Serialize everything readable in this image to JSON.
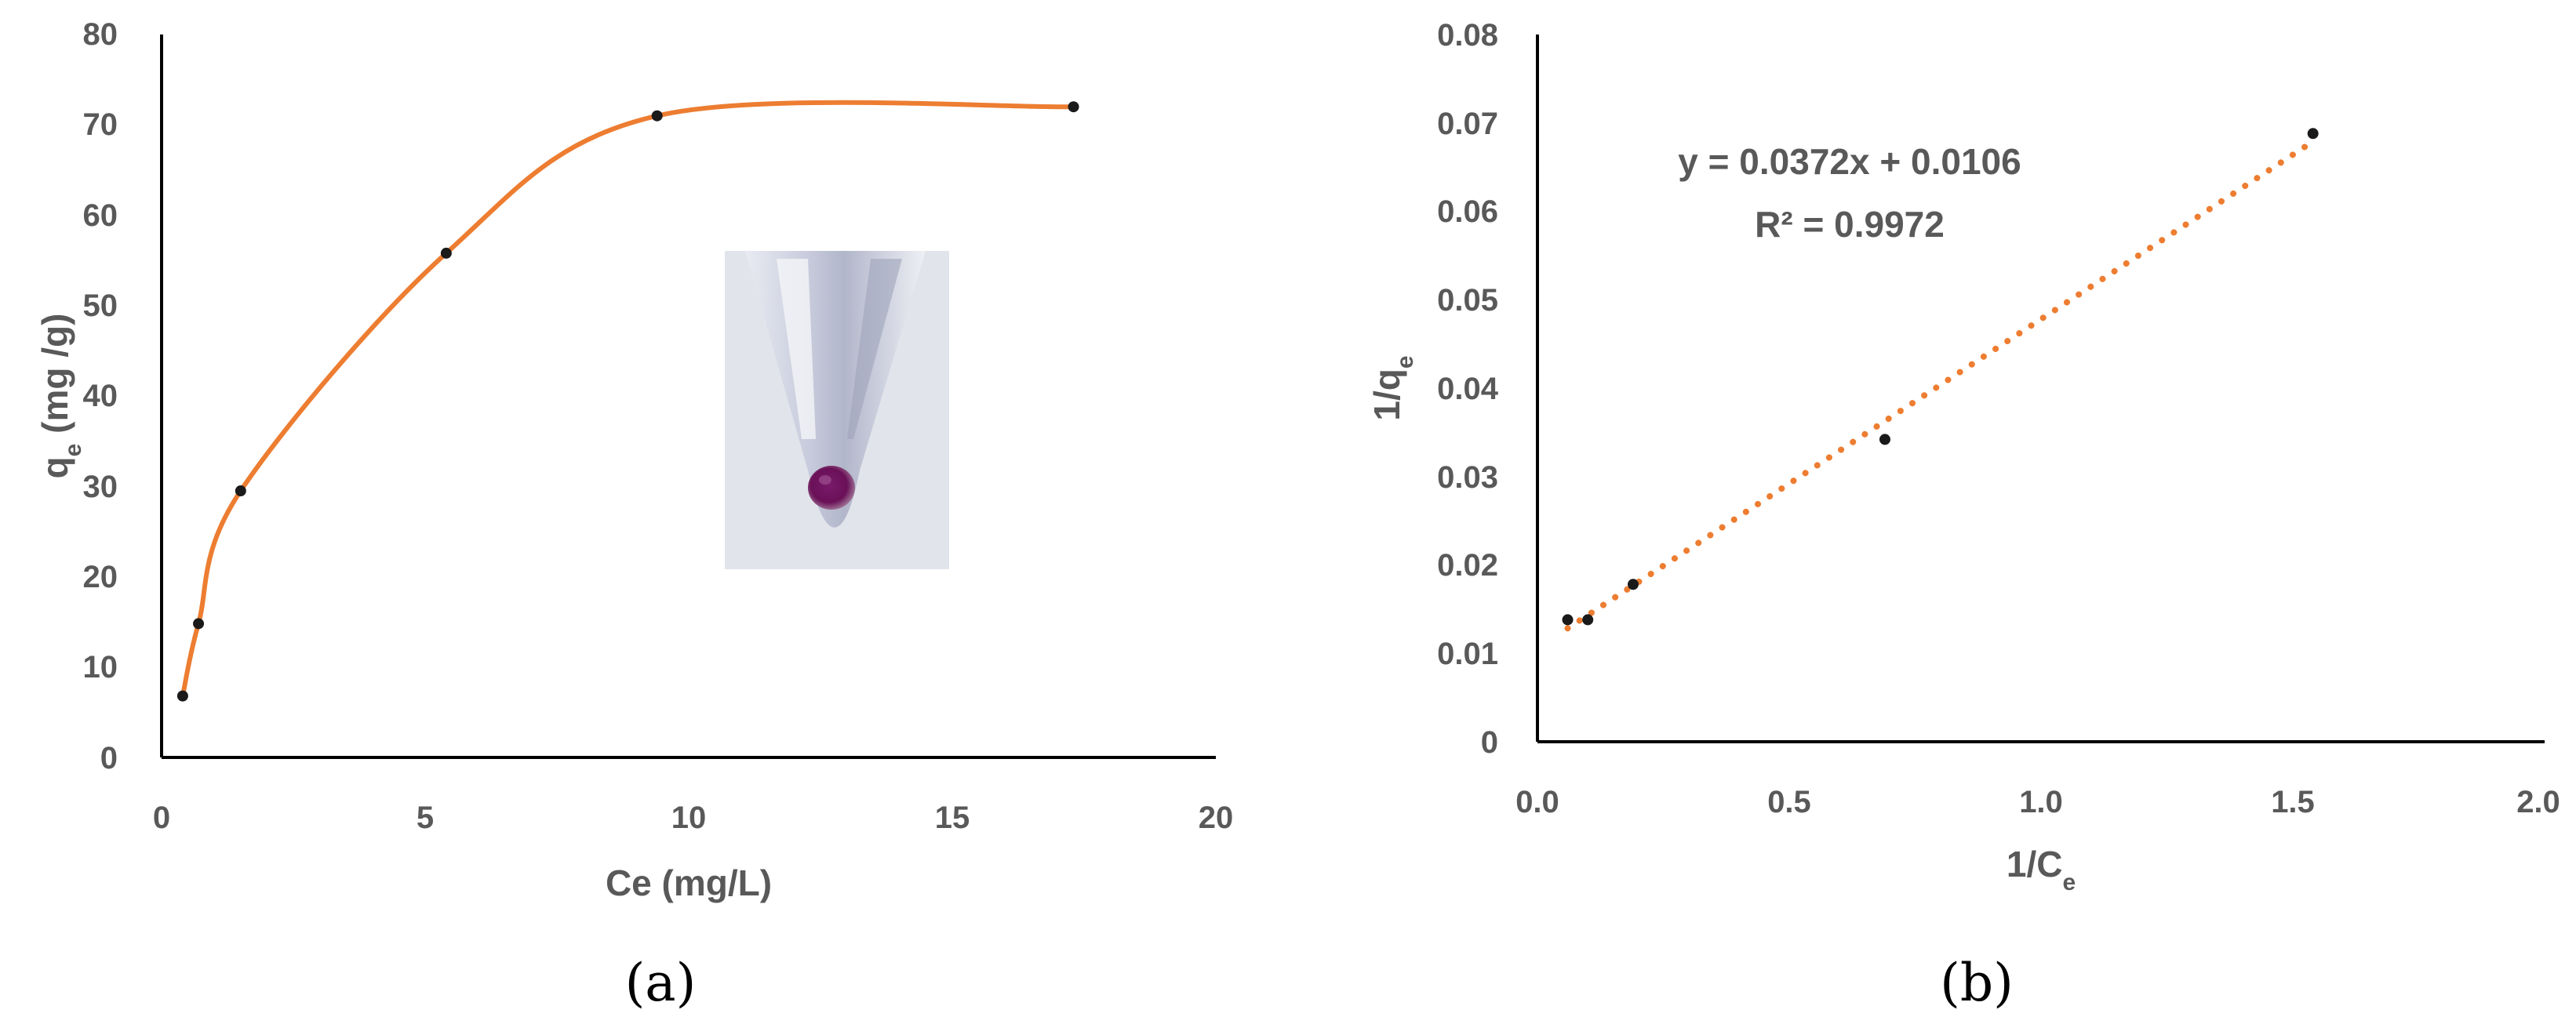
{
  "chart_data": [
    {
      "panel": "(a)",
      "type": "line",
      "xlabel": "Ce (mg/L)",
      "ylabel": "qe (mg /g)",
      "xlim": [
        0,
        20
      ],
      "ylim": [
        0,
        80
      ],
      "xticks": [
        "0",
        "5",
        "10",
        "15",
        "20"
      ],
      "yticks": [
        "0",
        "10",
        "20",
        "30",
        "40",
        "50",
        "60",
        "70",
        "80"
      ],
      "grid": false,
      "series": [
        {
          "marker": "dot",
          "line": "smooth",
          "line_color": "#ED7D31",
          "marker_color": "#1a1a1a",
          "x": [
            0.4,
            0.7,
            1.5,
            5.4,
            9.4,
            17.3
          ],
          "y": [
            6.8,
            14.8,
            29.5,
            55.8,
            71.0,
            72.0
          ]
        }
      ],
      "inset": "photo of tube with purple pellet"
    },
    {
      "panel": "(b)",
      "type": "scatter",
      "xlabel": "1/Ce",
      "ylabel": "1/qe",
      "xlim": [
        0,
        2.0
      ],
      "ylim": [
        0,
        0.08
      ],
      "xticks": [
        "0.0",
        "0.5",
        "1.0",
        "1.5",
        "2.0"
      ],
      "yticks": [
        "0",
        "0.01",
        "0.02",
        "0.03",
        "0.04",
        "0.05",
        "0.06",
        "0.07",
        "0.08"
      ],
      "grid": false,
      "series": [
        {
          "marker": "dot",
          "marker_color": "#1a1a1a",
          "x": [
            0.06,
            0.1,
            0.19,
            0.69,
            1.54
          ],
          "y": [
            0.0138,
            0.0138,
            0.0178,
            0.0342,
            0.0688
          ]
        }
      ],
      "trendline": {
        "slope": 0.0372,
        "intercept": 0.0106,
        "x_range": [
          0.06,
          1.54
        ],
        "color": "#ED7D31",
        "style": "dotted"
      },
      "annotations": [
        "y = 0.0372x + 0.0106",
        "R² = 0.9972"
      ]
    }
  ]
}
